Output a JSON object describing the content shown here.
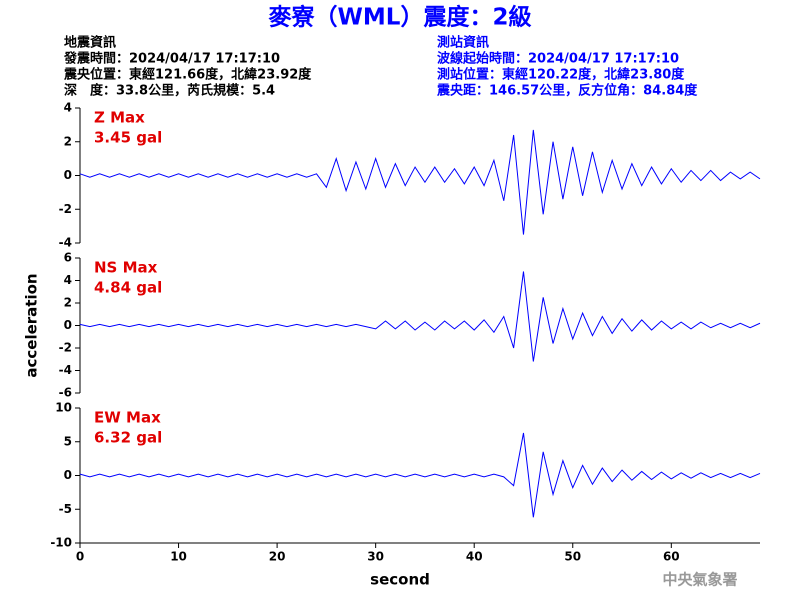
{
  "header": {
    "title": "麥寮（WML）震度：2級",
    "info_left": [
      "地震資訊",
      "發震時間：2024/04/17 17:17:10",
      "震央位置：東經121.66度，北緯23.92度",
      "深　度：33.8公里，芮氏規模：5.4"
    ],
    "info_right": [
      "測站資訊",
      "波線起始時間：2024/04/17 17:17:10",
      "測站位置：東經120.22度，北緯23.80度",
      "震央距：146.57公里，反方位角：84.84度"
    ]
  },
  "footer": "中央氣象署",
  "chart_data": [
    {
      "type": "line",
      "annotations": [
        "Z Max",
        "3.45 gal"
      ],
      "color": "#0000ff",
      "xlim": [
        0,
        69
      ],
      "ylim": [
        -4,
        4
      ],
      "yticks": [
        -4,
        -2,
        0,
        2,
        4
      ],
      "x": [
        0,
        1,
        2,
        3,
        4,
        5,
        6,
        7,
        8,
        9,
        10,
        11,
        12,
        13,
        14,
        15,
        16,
        17,
        18,
        19,
        20,
        21,
        22,
        23,
        24,
        25,
        26,
        27,
        28,
        29,
        30,
        31,
        32,
        33,
        34,
        35,
        36,
        37,
        38,
        39,
        40,
        41,
        42,
        43,
        44,
        45,
        46,
        47,
        48,
        49,
        50,
        51,
        52,
        53,
        54,
        55,
        56,
        57,
        58,
        59,
        60,
        61,
        62,
        63,
        64,
        65,
        66,
        67,
        68,
        69
      ],
      "values": [
        0.1,
        -0.1,
        0.1,
        -0.1,
        0.1,
        -0.1,
        0.1,
        -0.1,
        0.1,
        -0.1,
        0.1,
        -0.1,
        0.1,
        -0.1,
        0.1,
        -0.1,
        0.1,
        -0.1,
        0.1,
        -0.1,
        0.1,
        -0.1,
        0.1,
        -0.1,
        0.1,
        -0.7,
        1.0,
        -0.9,
        0.8,
        -0.8,
        1.0,
        -0.7,
        0.7,
        -0.6,
        0.5,
        -0.4,
        0.5,
        -0.4,
        0.4,
        -0.5,
        0.5,
        -0.6,
        0.9,
        -1.5,
        2.4,
        -3.5,
        2.7,
        -2.3,
        2.0,
        -1.4,
        1.7,
        -1.2,
        1.4,
        -1.0,
        0.9,
        -0.8,
        0.7,
        -0.6,
        0.5,
        -0.5,
        0.4,
        -0.4,
        0.3,
        -0.3,
        0.3,
        -0.3,
        0.2,
        -0.2,
        0.2,
        -0.2
      ]
    },
    {
      "type": "line",
      "annotations": [
        "NS Max",
        "4.84 gal"
      ],
      "color": "#0000ff",
      "ylabel": "acceleration",
      "xlim": [
        0,
        69
      ],
      "ylim": [
        -6,
        6
      ],
      "yticks": [
        -6,
        -4,
        -2,
        0,
        2,
        4,
        6
      ],
      "x": [
        0,
        1,
        2,
        3,
        4,
        5,
        6,
        7,
        8,
        9,
        10,
        11,
        12,
        13,
        14,
        15,
        16,
        17,
        18,
        19,
        20,
        21,
        22,
        23,
        24,
        25,
        26,
        27,
        28,
        29,
        30,
        31,
        32,
        33,
        34,
        35,
        36,
        37,
        38,
        39,
        40,
        41,
        42,
        43,
        44,
        45,
        46,
        47,
        48,
        49,
        50,
        51,
        52,
        53,
        54,
        55,
        56,
        57,
        58,
        59,
        60,
        61,
        62,
        63,
        64,
        65,
        66,
        67,
        68,
        69
      ],
      "values": [
        0.1,
        -0.1,
        0.1,
        -0.1,
        0.1,
        -0.1,
        0.1,
        -0.1,
        0.1,
        -0.1,
        0.1,
        -0.1,
        0.1,
        -0.1,
        0.1,
        -0.1,
        0.1,
        -0.1,
        0.1,
        -0.1,
        0.1,
        -0.1,
        0.1,
        -0.1,
        0.1,
        -0.1,
        0.1,
        -0.1,
        0.1,
        -0.1,
        -0.3,
        0.4,
        -0.3,
        0.4,
        -0.4,
        0.3,
        -0.4,
        0.4,
        -0.3,
        0.4,
        -0.4,
        0.5,
        -0.6,
        0.8,
        -2.0,
        4.8,
        -3.2,
        2.5,
        -1.6,
        1.5,
        -1.2,
        1.1,
        -0.9,
        0.8,
        -0.7,
        0.6,
        -0.5,
        0.5,
        -0.4,
        0.4,
        -0.3,
        0.3,
        -0.3,
        0.3,
        -0.2,
        0.2,
        -0.2,
        0.2,
        -0.2,
        0.2
      ]
    },
    {
      "type": "line",
      "annotations": [
        "EW Max",
        "6.32 gal"
      ],
      "color": "#0000ff",
      "xlabel": "second",
      "xlim": [
        0,
        69
      ],
      "xticks": [
        0,
        10,
        20,
        30,
        40,
        50,
        60
      ],
      "ylim": [
        -10,
        10
      ],
      "yticks": [
        -10,
        -5,
        0,
        5,
        10
      ],
      "x": [
        0,
        1,
        2,
        3,
        4,
        5,
        6,
        7,
        8,
        9,
        10,
        11,
        12,
        13,
        14,
        15,
        16,
        17,
        18,
        19,
        20,
        21,
        22,
        23,
        24,
        25,
        26,
        27,
        28,
        29,
        30,
        31,
        32,
        33,
        34,
        35,
        36,
        37,
        38,
        39,
        40,
        41,
        42,
        43,
        44,
        45,
        46,
        47,
        48,
        49,
        50,
        51,
        52,
        53,
        54,
        55,
        56,
        57,
        58,
        59,
        60,
        61,
        62,
        63,
        64,
        65,
        66,
        67,
        68,
        69
      ],
      "values": [
        0.2,
        -0.2,
        0.2,
        -0.2,
        0.2,
        -0.2,
        0.2,
        -0.2,
        0.2,
        -0.2,
        0.2,
        -0.2,
        0.2,
        -0.2,
        0.2,
        -0.2,
        0.2,
        -0.2,
        0.2,
        -0.2,
        0.2,
        -0.2,
        0.2,
        -0.2,
        0.2,
        -0.2,
        0.2,
        -0.2,
        0.2,
        -0.2,
        0.2,
        -0.2,
        0.2,
        -0.2,
        0.2,
        -0.2,
        0.2,
        -0.2,
        0.2,
        -0.2,
        0.2,
        -0.2,
        0.2,
        -0.2,
        -1.5,
        6.3,
        -6.2,
        3.5,
        -2.8,
        2.2,
        -1.8,
        1.5,
        -1.3,
        1.1,
        -0.9,
        0.8,
        -0.7,
        0.6,
        -0.6,
        0.5,
        -0.5,
        0.4,
        -0.4,
        0.4,
        -0.3,
        0.3,
        -0.3,
        0.3,
        -0.3,
        0.3
      ]
    }
  ]
}
